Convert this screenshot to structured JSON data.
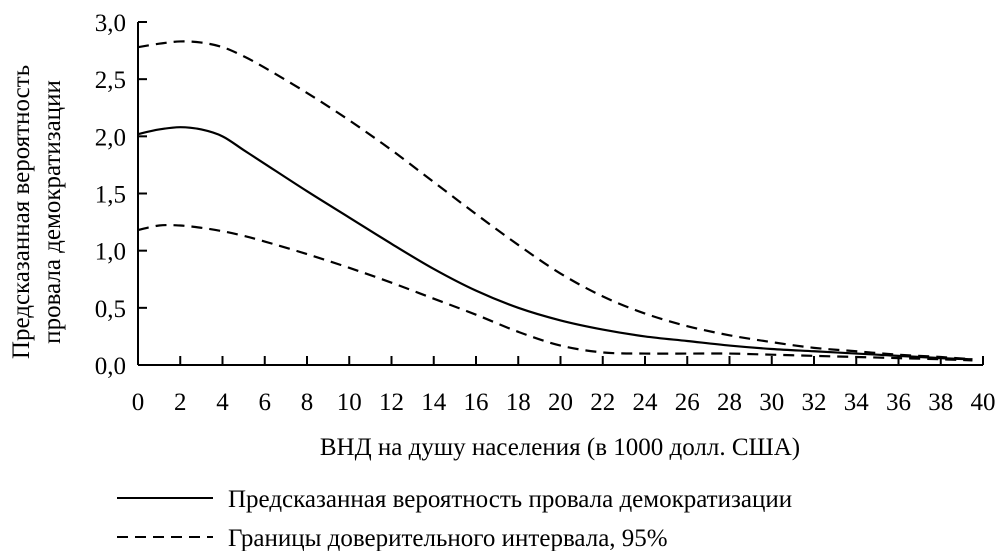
{
  "chart_data": {
    "type": "line",
    "xlabel": "ВНД на душу населения (в 1000 долл. США)",
    "ylabel_lines": [
      "Предсказанная вероятность",
      "провала демократизации"
    ],
    "xlim": [
      0,
      40
    ],
    "ylim": [
      0,
      3.0
    ],
    "x_ticks": [
      0,
      2,
      4,
      6,
      8,
      10,
      12,
      14,
      16,
      18,
      20,
      22,
      24,
      26,
      28,
      30,
      32,
      34,
      36,
      38,
      40
    ],
    "x_tick_labels": [
      "0",
      "2",
      "4",
      "6",
      "8",
      "10",
      "12",
      "14",
      "16",
      "18",
      "20",
      "22",
      "24",
      "26",
      "28",
      "30",
      "32",
      "34",
      "36",
      "38",
      "40"
    ],
    "y_ticks": [
      0,
      0.5,
      1.0,
      1.5,
      2.0,
      2.5,
      3.0
    ],
    "y_tick_labels": [
      "0,0",
      "0,5",
      "1,0",
      "1,5",
      "2,0",
      "2,5",
      "3,0"
    ],
    "grid": false,
    "legend_placement": "bottom",
    "series": [
      {
        "name": "Предсказанная вероятность провала демократизации",
        "style": "solid",
        "color": "#000000",
        "x": [
          0,
          1,
          2,
          3,
          4,
          5,
          6,
          8,
          10,
          12,
          14,
          16,
          18,
          20,
          22,
          24,
          26,
          28,
          30,
          32,
          34,
          36,
          38,
          39.5
        ],
        "y": [
          2.02,
          2.06,
          2.08,
          2.06,
          2.0,
          1.88,
          1.76,
          1.52,
          1.29,
          1.06,
          0.84,
          0.65,
          0.5,
          0.39,
          0.31,
          0.25,
          0.21,
          0.17,
          0.14,
          0.12,
          0.1,
          0.08,
          0.06,
          0.05
        ]
      },
      {
        "name": "Границы доверительного интервала, 95%",
        "style": "dashed",
        "color": "#000000",
        "x": [
          0,
          1,
          2,
          3,
          4,
          5,
          6,
          8,
          10,
          12,
          14,
          16,
          18,
          20,
          22,
          24,
          26,
          28,
          30,
          32,
          34,
          36,
          38,
          39.5
        ],
        "y": [
          2.78,
          2.81,
          2.83,
          2.82,
          2.78,
          2.7,
          2.6,
          2.38,
          2.14,
          1.88,
          1.6,
          1.32,
          1.05,
          0.8,
          0.6,
          0.45,
          0.34,
          0.26,
          0.2,
          0.15,
          0.12,
          0.09,
          0.07,
          0.05
        ]
      },
      {
        "name": "",
        "style": "dashed",
        "color": "#000000",
        "x": [
          0,
          1,
          2,
          3,
          4,
          5,
          6,
          8,
          10,
          12,
          14,
          16,
          18,
          20,
          22,
          24,
          26,
          28,
          30,
          32,
          34,
          36,
          38,
          39.5
        ],
        "y": [
          1.18,
          1.22,
          1.22,
          1.2,
          1.17,
          1.13,
          1.08,
          0.97,
          0.85,
          0.72,
          0.58,
          0.44,
          0.29,
          0.17,
          0.11,
          0.1,
          0.1,
          0.1,
          0.09,
          0.08,
          0.07,
          0.06,
          0.05,
          0.04
        ]
      }
    ],
    "legend": [
      {
        "label": "Предсказанная вероятность провала демократизации",
        "style": "solid"
      },
      {
        "label": "Границы доверительного интервала, 95%",
        "style": "dashed"
      }
    ]
  }
}
